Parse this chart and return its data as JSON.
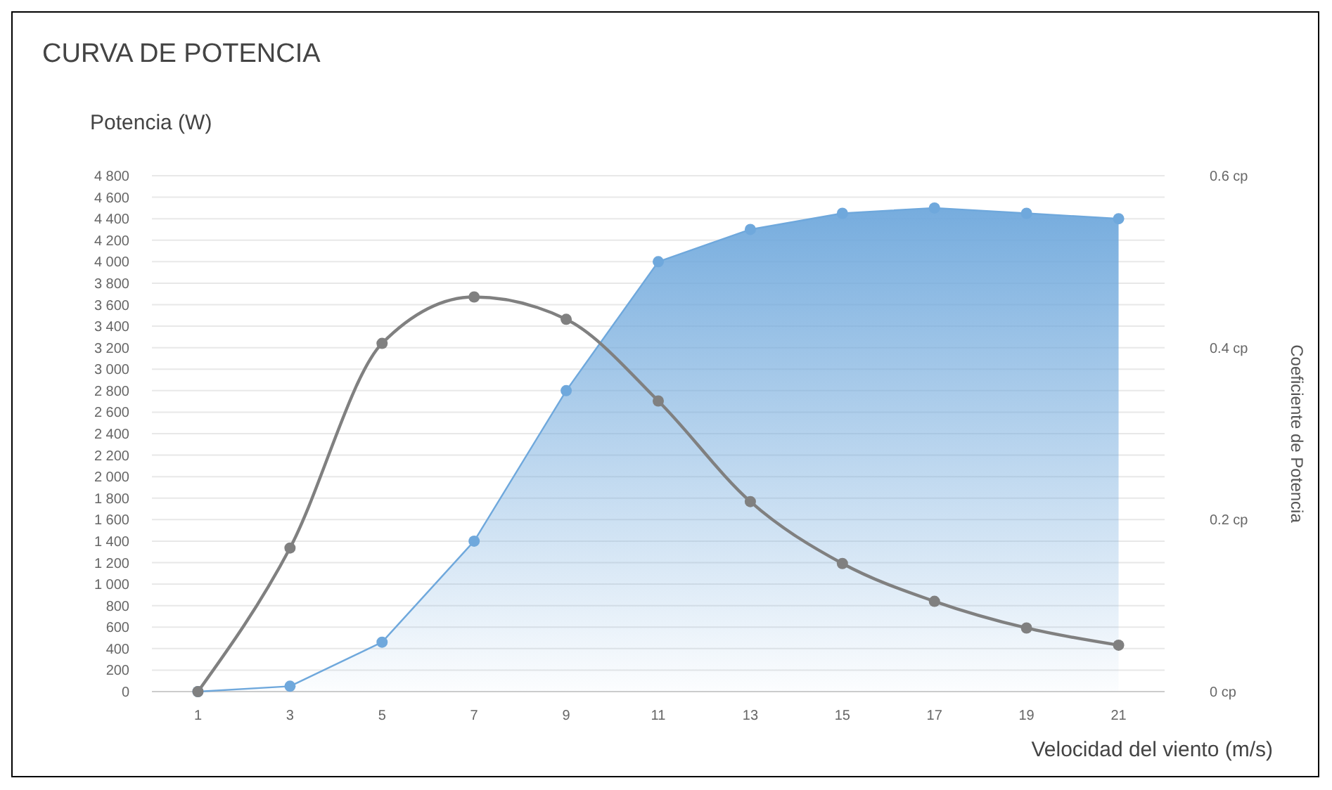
{
  "chart_data": {
    "type": "line",
    "title": "CURVA DE POTENCIA",
    "ylabel": "Potencia (W)",
    "y2label": "Coeficiente de Potencia",
    "xlabel": "Velocidad del viento (m/s)",
    "x": [
      1,
      3,
      5,
      7,
      9,
      11,
      13,
      15,
      17,
      19,
      21
    ],
    "xlim": [
      0,
      22
    ],
    "xticks": [
      1,
      3,
      5,
      7,
      9,
      11,
      13,
      15,
      17,
      19,
      21
    ],
    "series": [
      {
        "type": "area",
        "color": "#6fa8dc",
        "values": [
          0,
          50,
          460,
          1400,
          2800,
          4000,
          4300,
          4450,
          4500,
          4450,
          4400
        ]
      },
      {
        "axis": "y2",
        "color": "#808080",
        "values": [
          0,
          0.167,
          0.405,
          0.459,
          0.433,
          0.338,
          0.221,
          0.149,
          0.105,
          0.074,
          0.054
        ]
      }
    ],
    "ylim": [
      0,
      4800
    ],
    "yticks": [
      0,
      {
        "value": 200,
        "label": "200"
      },
      {
        "value": 400,
        "label": "400"
      },
      {
        "value": 600,
        "label": "600"
      },
      {
        "value": 800,
        "label": "800"
      },
      {
        "value": 1000,
        "label": "1 000"
      },
      {
        "value": 1200,
        "label": "1 200"
      },
      {
        "value": 1400,
        "label": "1 400"
      },
      {
        "value": 1600,
        "label": "1 600"
      },
      {
        "value": 1800,
        "label": "1 800"
      },
      {
        "value": 2000,
        "label": "2 000"
      },
      {
        "value": 2200,
        "label": "2 200"
      },
      {
        "value": 2400,
        "label": "2 400"
      },
      {
        "value": 2600,
        "label": "2 600"
      },
      {
        "value": 2800,
        "label": "2 800"
      },
      {
        "value": 3000,
        "label": "3 000"
      },
      {
        "value": 3200,
        "label": "3 200"
      },
      {
        "value": 3400,
        "label": "3 400"
      },
      {
        "value": 3600,
        "label": "3 600"
      },
      {
        "value": 3800,
        "label": "3 800"
      },
      {
        "value": 4000,
        "label": "4 000"
      },
      {
        "value": 4200,
        "label": "4 200"
      },
      {
        "value": 4400,
        "label": "4 400"
      },
      {
        "value": 4600,
        "label": "4 600"
      },
      {
        "value": 4800,
        "label": "4 800"
      }
    ],
    "y2lim": [
      0,
      0.6
    ],
    "y2ticks": [
      {
        "value": 0,
        "label": "0 cp"
      },
      {
        "value": 0.2,
        "label": "0.2 cp"
      },
      {
        "value": 0.4,
        "label": "0.4 cp"
      },
      {
        "value": 0.6,
        "label": "0.6 cp"
      }
    ],
    "grid": "y",
    "marker": "circle"
  }
}
